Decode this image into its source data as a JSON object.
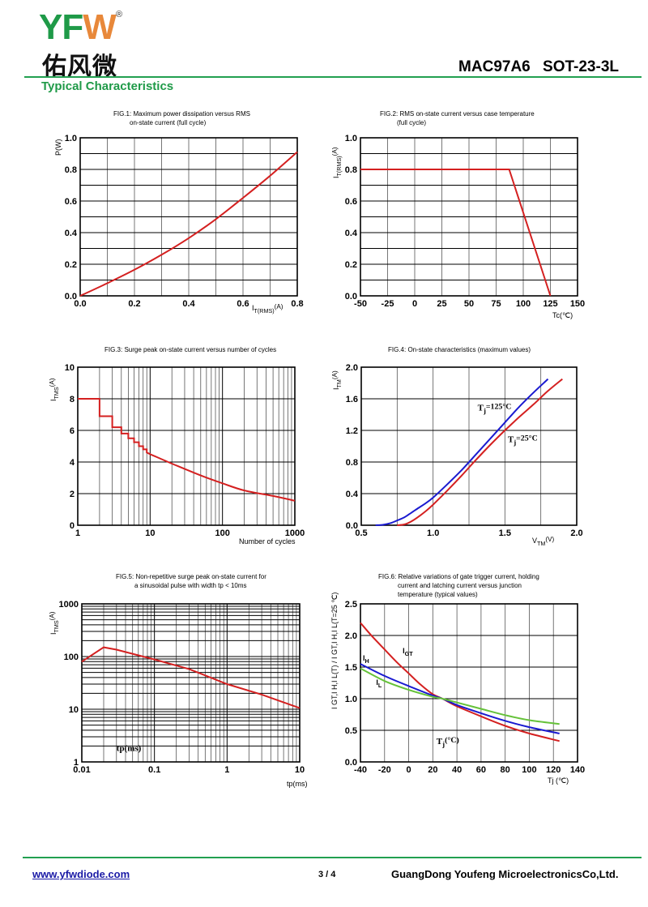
{
  "header": {
    "logo_text": "YFW",
    "logo_cn": "佑风微",
    "logo_reg": "®",
    "product": "MAC97A6   SOT-23-3L",
    "section_title": "Typical Characteristics"
  },
  "footer": {
    "website": "www.yfwdiode.com",
    "page": "3 / 4",
    "company": "GuangDong Youfeng MicroelectronicsCo,Ltd."
  },
  "colors": {
    "brand_green": "#1f9a48",
    "brand_orange": "#e8883a",
    "red": "#d42020",
    "blue": "#1a1ad0",
    "green": "#66c23a"
  },
  "chart_data": [
    {
      "id": "fig1",
      "type": "line",
      "title": [
        "FIG.1: Maximum power dissipation versus RMS",
        "on-state current (full cycle)"
      ],
      "xlabel": "I",
      "xlabel_sub": "T(RMS)",
      "xlabel_unit": "(A)",
      "ylabel": "P(W)",
      "xscale": "linear",
      "yscale": "linear",
      "xlim": [
        0,
        0.8
      ],
      "ylim": [
        0,
        1.0
      ],
      "xticks": [
        0.0,
        0.2,
        0.4,
        0.6,
        0.8
      ],
      "xticklabels": [
        "0.0",
        "0.2",
        "0.4",
        "0.6",
        "0.8"
      ],
      "yticks": [
        0.0,
        0.2,
        0.4,
        0.6,
        0.8,
        1.0
      ],
      "yticklabels": [
        "0.0",
        "0.2",
        "0.4",
        "0.6",
        "0.8",
        "1.0"
      ],
      "xgrid": [
        0.1,
        0.2,
        0.3,
        0.4,
        0.5,
        0.6,
        0.7
      ],
      "ygrid": [
        0.1,
        0.2,
        0.3,
        0.4,
        0.5,
        0.6,
        0.7,
        0.8,
        0.9
      ],
      "grid": true,
      "series": [
        {
          "name": "P",
          "color": "#d42020",
          "x": [
            0,
            0.1,
            0.2,
            0.3,
            0.4,
            0.5,
            0.6,
            0.7,
            0.8
          ],
          "y": [
            0,
            0.08,
            0.165,
            0.26,
            0.365,
            0.485,
            0.62,
            0.76,
            0.91
          ]
        }
      ]
    },
    {
      "id": "fig2",
      "type": "line",
      "title": [
        "FIG.2: RMS on-state current versus case temperature",
        "(full cycle)"
      ],
      "xlabel": "Tc(℃)",
      "ylabel": "I",
      "ylabel_sub": "T(RMS)",
      "ylabel_unit": "(A)",
      "xscale": "linear",
      "yscale": "linear",
      "xlim": [
        -50,
        150
      ],
      "ylim": [
        0,
        1.0
      ],
      "xticks": [
        -50,
        -25,
        0,
        25,
        50,
        75,
        100,
        125,
        150
      ],
      "xticklabels": [
        "-50",
        "-25",
        "0",
        "25",
        "50",
        "75",
        "100",
        "125",
        "150"
      ],
      "yticks": [
        0.0,
        0.2,
        0.4,
        0.6,
        0.8,
        1.0
      ],
      "yticklabels": [
        "0.0",
        "0.2",
        "0.4",
        "0.6",
        "0.8",
        "1.0"
      ],
      "xgrid": [
        -25,
        0,
        25,
        50,
        75,
        100,
        125
      ],
      "ygrid": [
        0.1,
        0.2,
        0.3,
        0.4,
        0.5,
        0.6,
        0.7,
        0.8,
        0.9
      ],
      "grid": true,
      "series": [
        {
          "name": "IT(RMS)",
          "color": "#d42020",
          "x": [
            -50,
            87,
            125
          ],
          "y": [
            0.8,
            0.8,
            0.0
          ]
        }
      ]
    },
    {
      "id": "fig3",
      "type": "line",
      "title": [
        "FIG.3: Surge peak on-state current versus number of cycles"
      ],
      "xlabel": "Number of cycles",
      "ylabel": "I",
      "ylabel_sub": "TMS",
      "ylabel_unit": "(A)",
      "xscale": "log",
      "yscale": "linear",
      "xlim": [
        1,
        1000
      ],
      "ylim": [
        0,
        10
      ],
      "xticks": [
        1,
        10,
        100,
        1000
      ],
      "xticklabels": [
        "1",
        "10",
        "100",
        "1000"
      ],
      "yticks": [
        0,
        2,
        4,
        6,
        8,
        10
      ],
      "yticklabels": [
        "0",
        "2",
        "4",
        "6",
        "8",
        "10"
      ],
      "ygrid": [
        2,
        4,
        6,
        8
      ],
      "grid": true,
      "series": [
        {
          "name": "ITSM",
          "color": "#d42020",
          "x": [
            1,
            2,
            2,
            3,
            3,
            4,
            4,
            5,
            5,
            6,
            6,
            7,
            7,
            8,
            8,
            9,
            9,
            10,
            20,
            50,
            100,
            200,
            500,
            1000
          ],
          "y": [
            8,
            8,
            6.9,
            6.9,
            6.2,
            6.2,
            5.8,
            5.8,
            5.5,
            5.5,
            5.25,
            5.25,
            5.0,
            5.0,
            4.8,
            4.8,
            4.6,
            4.5,
            3.9,
            3.15,
            2.65,
            2.2,
            1.85,
            1.55
          ]
        }
      ]
    },
    {
      "id": "fig4",
      "type": "line",
      "title": [
        "FIG.4: On-state characteristics (maximum values)"
      ],
      "xlabel": "V",
      "xlabel_sub": "TM",
      "xlabel_unit": "(V)",
      "ylabel": "I",
      "ylabel_sub": "TM",
      "ylabel_unit": "(A)",
      "xscale": "linear",
      "yscale": "linear",
      "xlim": [
        0.5,
        2.0
      ],
      "ylim": [
        0,
        2.0
      ],
      "xticks": [
        0.5,
        1.0,
        1.5,
        2.0
      ],
      "xticklabels": [
        "0.5",
        "1.0",
        "1.5",
        "2.0"
      ],
      "yticks": [
        0.0,
        0.4,
        0.8,
        1.2,
        1.6,
        2.0
      ],
      "yticklabels": [
        "0.0",
        "0.4",
        "0.8",
        "1.2",
        "1.6",
        "2.0"
      ],
      "xgrid": [
        0.75,
        1.0,
        1.25,
        1.5,
        1.75
      ],
      "ygrid": [
        0.4,
        0.8,
        1.2,
        1.6
      ],
      "grid": true,
      "annotations": [
        {
          "text": "T",
          "sub": "j",
          "rest": "=125°C",
          "x": 1.31,
          "y": 1.45
        },
        {
          "text": "T",
          "sub": "j",
          "rest": "=25°C",
          "x": 1.52,
          "y": 1.05
        }
      ],
      "series": [
        {
          "name": "Tj=125°C",
          "color": "#1a1ad0",
          "x": [
            0.6,
            0.65,
            0.7,
            0.75,
            0.8,
            0.85,
            0.9,
            0.95,
            1.0,
            1.1,
            1.2,
            1.3,
            1.4,
            1.5,
            1.6,
            1.7,
            1.8
          ],
          "y": [
            0,
            0.005,
            0.025,
            0.06,
            0.1,
            0.16,
            0.22,
            0.28,
            0.35,
            0.52,
            0.7,
            0.9,
            1.1,
            1.3,
            1.5,
            1.68,
            1.85
          ]
        },
        {
          "name": "Tj=25°C",
          "color": "#d42020",
          "x": [
            0.75,
            0.8,
            0.85,
            0.9,
            0.95,
            1.0,
            1.05,
            1.1,
            1.2,
            1.3,
            1.4,
            1.5,
            1.6,
            1.7,
            1.8,
            1.9
          ],
          "y": [
            0,
            0.01,
            0.05,
            0.11,
            0.18,
            0.26,
            0.35,
            0.44,
            0.63,
            0.83,
            1.02,
            1.2,
            1.37,
            1.53,
            1.7,
            1.85
          ]
        }
      ]
    },
    {
      "id": "fig5",
      "type": "line",
      "title": [
        "FIG.5: Non-repetitive surge peak on-state current for",
        "a sinusoidal pulse with width tp < 10ms"
      ],
      "xlabel": "tp(ms)",
      "ylabel": "I",
      "ylabel_sub": "TMS",
      "ylabel_unit": "(A)",
      "xscale": "log",
      "yscale": "log",
      "xlim": [
        0.01,
        10
      ],
      "ylim": [
        1,
        1000
      ],
      "xticks": [
        0.01,
        0.1,
        1,
        10
      ],
      "xticklabels": [
        "0.01",
        "0.1",
        "1",
        "10"
      ],
      "yticks": [
        1,
        10,
        100,
        1000
      ],
      "yticklabels": [
        "1",
        "10",
        "100",
        "1000"
      ],
      "grid": true,
      "annotations": [
        {
          "text": "tp(ms)",
          "x": 0.03,
          "y": 1.6
        }
      ],
      "series": [
        {
          "name": "ITSM",
          "color": "#d42020",
          "x": [
            0.01,
            0.02,
            0.03,
            0.1,
            0.3,
            1,
            3,
            10
          ],
          "y": [
            80,
            150,
            135,
            88,
            58,
            30,
            19,
            10.5
          ]
        }
      ]
    },
    {
      "id": "fig6",
      "type": "line",
      "title": [
        "FIG.6: Relative variations of gate trigger current, holding",
        "current and latching current versus junction",
        "temperature (typical values)"
      ],
      "xlabel": "Tj (℃)",
      "ylabel": "I GT,I H,I L(T) / I GT,I H,I L(T=25 ℃)",
      "xscale": "linear",
      "yscale": "linear",
      "xlim": [
        -40,
        140
      ],
      "ylim": [
        0,
        2.5
      ],
      "xticks": [
        -40,
        -20,
        0,
        20,
        40,
        60,
        80,
        100,
        120,
        140
      ],
      "xticklabels": [
        "-40",
        "-20",
        "0",
        "20",
        "40",
        "60",
        "80",
        "100",
        "120",
        "140"
      ],
      "yticks": [
        0.0,
        0.5,
        1.0,
        1.5,
        2.0,
        2.5
      ],
      "yticklabels": [
        "0.0",
        "0.5",
        "1.0",
        "1.5",
        "2.0",
        "2.5"
      ],
      "xgrid": [
        -20,
        0,
        20,
        40,
        60,
        80,
        100,
        120
      ],
      "ygrid": [
        0.5,
        1.0,
        1.5,
        2.0
      ],
      "grid": true,
      "annotations": [
        {
          "text": "I",
          "sub": "GT",
          "x": -5,
          "y": 1.72
        },
        {
          "text": "I",
          "sub": "H",
          "x": -38,
          "y": 1.6
        },
        {
          "text": "I",
          "sub": "L",
          "x": -27,
          "y": 1.22
        },
        {
          "text": "T",
          "sub": "j",
          "rest": "(°C)",
          "x": 23,
          "y": 0.28
        }
      ],
      "series": [
        {
          "name": "IGT",
          "color": "#d42020",
          "x": [
            -40,
            -30,
            -20,
            -10,
            0,
            10,
            20,
            28,
            40,
            60,
            80,
            100,
            125
          ],
          "y": [
            2.2,
            1.98,
            1.78,
            1.58,
            1.4,
            1.22,
            1.07,
            1.0,
            0.88,
            0.72,
            0.57,
            0.45,
            0.33
          ]
        },
        {
          "name": "IH",
          "color": "#1a1ad0",
          "x": [
            -40,
            -20,
            0,
            20,
            28,
            40,
            60,
            80,
            100,
            125
          ],
          "y": [
            1.55,
            1.36,
            1.2,
            1.05,
            1.0,
            0.9,
            0.77,
            0.65,
            0.55,
            0.45
          ]
        },
        {
          "name": "IL",
          "color": "#66c23a",
          "x": [
            -40,
            -20,
            0,
            20,
            28,
            40,
            60,
            80,
            100,
            125
          ],
          "y": [
            1.48,
            1.28,
            1.14,
            1.03,
            1.0,
            0.94,
            0.84,
            0.74,
            0.66,
            0.6
          ]
        }
      ]
    }
  ]
}
